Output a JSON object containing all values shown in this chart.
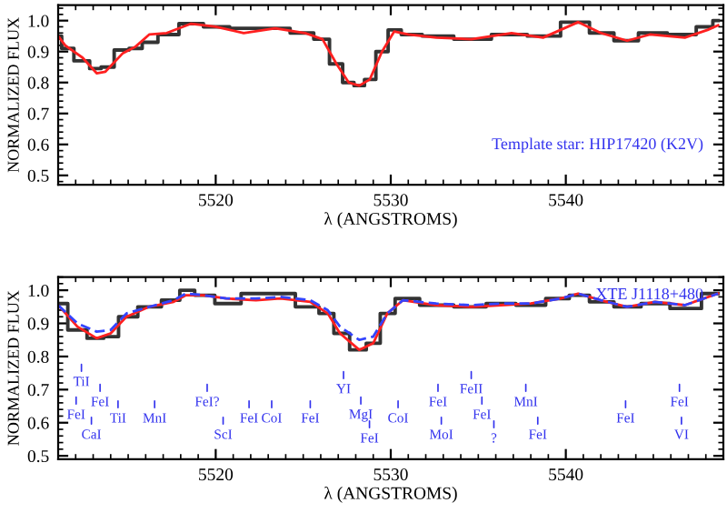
{
  "chart_data": [
    {
      "type": "line",
      "xlabel": "λ (ANGSTROMS)",
      "ylabel": "NORMALIZED FLUX",
      "xlim": [
        5511,
        5549
      ],
      "ylim": [
        0.47,
        1.05
      ],
      "xticks": [
        5520,
        5530,
        5540
      ],
      "yticks": [
        0.5,
        0.6,
        0.7,
        0.8,
        0.9,
        {
          "value": 1.0,
          "label": "1.0"
        }
      ],
      "grid": false,
      "legend": false,
      "x": [
        5511.0,
        5511.4,
        5512.4,
        5513.2,
        5513.7,
        5514.7,
        5515.4,
        5516.2,
        5517.2,
        5518.6,
        5520.0,
        5521.6,
        5523.4,
        5525.1,
        5526.1,
        5526.9,
        5527.6,
        5528.2,
        5528.8,
        5529.5,
        5530.2,
        5531.0,
        5532.6,
        5534.6,
        5536.9,
        5538.7,
        5540.7,
        5542.0,
        5543.5,
        5544.8,
        5546.8,
        5548.1,
        5548.7
      ],
      "series": [
        {
          "type": "step",
          "color": "#333333",
          "values": [
            0.95,
            0.91,
            0.87,
            0.845,
            0.85,
            0.905,
            0.91,
            0.93,
            0.955,
            0.99,
            0.98,
            0.975,
            0.975,
            0.96,
            0.94,
            0.86,
            0.8,
            0.79,
            0.81,
            0.9,
            0.97,
            0.955,
            0.95,
            0.94,
            0.955,
            0.95,
            0.995,
            0.96,
            0.935,
            0.96,
            0.955,
            0.98,
            1.0
          ]
        },
        {
          "color": "#ff2020",
          "values": [
            0.95,
            0.92,
            0.88,
            0.83,
            0.835,
            0.895,
            0.915,
            0.955,
            0.96,
            0.99,
            0.98,
            0.96,
            0.975,
            0.96,
            0.94,
            0.86,
            0.8,
            0.79,
            0.81,
            0.9,
            0.965,
            0.955,
            0.945,
            0.94,
            0.96,
            0.945,
            0.995,
            0.96,
            0.935,
            0.955,
            0.945,
            0.97,
            0.985
          ]
        }
      ],
      "annotations": [
        "Template star: HIP17420 (K2V)"
      ]
    },
    {
      "type": "line",
      "xlabel": "λ (ANGSTROMS)",
      "ylabel": "NORMALIZED FLUX",
      "xlim": [
        5511,
        5549
      ],
      "ylim": [
        0.49,
        1.04
      ],
      "xticks": [
        5520,
        5530,
        5540
      ],
      "yticks": [
        0.5,
        0.6,
        0.7,
        0.8,
        0.9,
        {
          "value": 1.0,
          "label": "1.0"
        }
      ],
      "grid": false,
      "legend": false,
      "x": [
        5511.0,
        5512.1,
        5513.2,
        5514.0,
        5514.9,
        5516.2,
        5517.6,
        5518.3,
        5519.3,
        5520.6,
        5522.3,
        5523.7,
        5525.4,
        5526.4,
        5527.1,
        5528.2,
        5529.0,
        5529.8,
        5530.7,
        5532.6,
        5534.6,
        5536.3,
        5538.0,
        5539.7,
        5540.7,
        5542.0,
        5543.5,
        5545.1,
        5546.8,
        5548.7
      ],
      "series": [
        {
          "type": "step",
          "color": "#333333",
          "values": [
            0.96,
            0.88,
            0.855,
            0.86,
            0.92,
            0.95,
            0.97,
            1.0,
            0.985,
            0.96,
            0.99,
            0.99,
            0.95,
            0.93,
            0.87,
            0.82,
            0.84,
            0.93,
            0.975,
            0.955,
            0.95,
            0.96,
            0.955,
            0.975,
            0.985,
            0.965,
            0.95,
            0.96,
            0.945,
            0.99
          ]
        },
        {
          "color": "#ff2020",
          "values": [
            0.955,
            0.89,
            0.855,
            0.87,
            0.92,
            0.95,
            0.965,
            0.985,
            0.985,
            0.975,
            0.97,
            0.975,
            0.965,
            0.93,
            0.87,
            0.82,
            0.84,
            0.93,
            0.97,
            0.955,
            0.95,
            0.955,
            0.96,
            0.975,
            0.99,
            0.97,
            0.95,
            0.965,
            0.955,
            0.99
          ]
        },
        {
          "line_style": "dashed",
          "color": "#3344ff",
          "values": [
            0.955,
            0.9,
            0.875,
            0.88,
            0.93,
            0.95,
            0.97,
            0.99,
            0.985,
            0.975,
            0.975,
            0.98,
            0.97,
            0.94,
            0.89,
            0.85,
            0.86,
            0.93,
            0.97,
            0.96,
            0.955,
            0.96,
            0.96,
            0.975,
            0.99,
            0.97,
            0.95,
            0.965,
            0.955,
            0.99
          ]
        }
      ],
      "annotations": [
        "XTE J1118+480",
        "TiI",
        "FeI",
        "CaI",
        "FeI",
        "TiI",
        "MnI",
        "FeI?",
        "ScI",
        "FeI",
        "CoI",
        "FeI",
        "YI",
        "MgI",
        "FeI",
        "CoI",
        "FeI",
        "MoI",
        "FeII",
        "FeI",
        "?",
        "MnI",
        "FeI",
        "FeI",
        "FeI",
        "VI"
      ]
    }
  ]
}
